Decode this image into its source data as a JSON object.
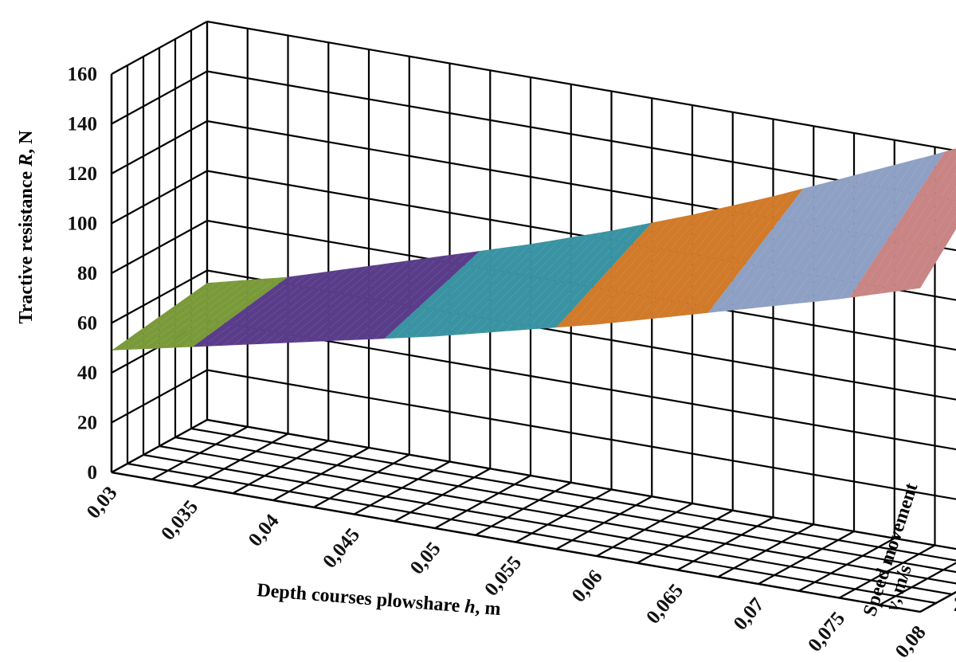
{
  "chart_data": {
    "type": "surface",
    "x_axis": {
      "label_prefix": "Depth courses plowshare ",
      "label_var": "h",
      "label_suffix": ", m",
      "ticks": [
        "0,03",
        "0,035",
        "0,04",
        "0,045",
        "0,05",
        "0,055",
        "0,06",
        "0,065",
        "0,07",
        "0,075",
        "0,08"
      ],
      "values": [
        0.03,
        0.035,
        0.04,
        0.045,
        0.05,
        0.055,
        0.06,
        0.065,
        0.07,
        0.075,
        0.08
      ]
    },
    "y_axis": {
      "label_line1": "Speed movement",
      "label_line2_var": "v",
      "label_line2_suffix": ", m/s",
      "ticks": [
        "2",
        "2,8",
        "3,6"
      ],
      "values": [
        2,
        2.8,
        3.6
      ]
    },
    "z_axis": {
      "label_prefix": "Tractive resistance ",
      "label_var": "R",
      "label_suffix": ", N",
      "ticks": [
        "0",
        "20",
        "40",
        "60",
        "80",
        "100",
        "120",
        "140",
        "160"
      ],
      "range": [
        0,
        160
      ]
    },
    "surface": {
      "at_v_2": [
        49,
        56,
        63,
        70,
        77,
        85,
        93,
        102,
        111,
        120,
        130
      ],
      "at_v_3_6": [
        55,
        63,
        73,
        83,
        93,
        104,
        116,
        129,
        143,
        157,
        172
      ]
    },
    "legend_bands": [
      {
        "range": "40-60",
        "color": "#7a9a3a"
      },
      {
        "range": "60-80",
        "color": "#5a3d8a"
      },
      {
        "range": "80-100",
        "color": "#3a93a2"
      },
      {
        "range": "100-120",
        "color": "#d07a2a"
      },
      {
        "range": "120-140",
        "color": "#8ea0c4"
      },
      {
        "range": "140-160",
        "color": "#c98484"
      }
    ],
    "grid": true
  }
}
